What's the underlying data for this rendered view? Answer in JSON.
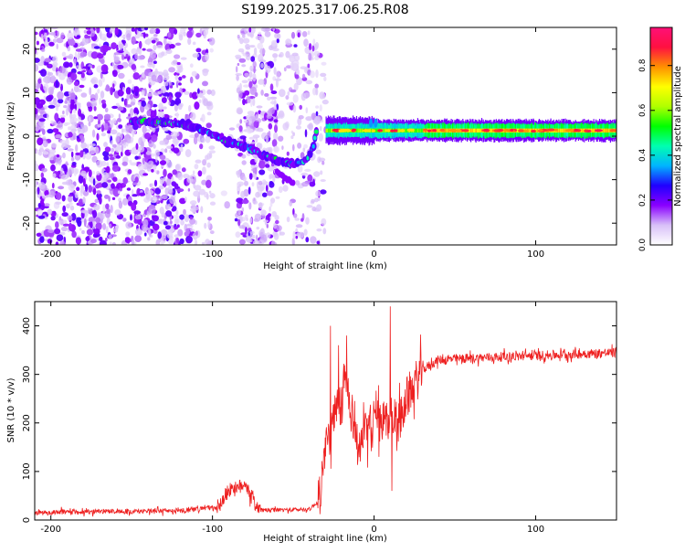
{
  "page_title": "S199.2025.317.06.25.R08",
  "chart_data": [
    {
      "type": "heatmap",
      "title": "S199.2025.317.06.25.R08",
      "xlabel": "Height of straight line (km)",
      "ylabel": "Frequency (Hz)",
      "xlim": [
        -210,
        150
      ],
      "ylim": [
        -25,
        25
      ],
      "x_ticks": [
        -200,
        -100,
        0,
        100
      ],
      "y_ticks": [
        -20,
        -10,
        0,
        10,
        20
      ],
      "colorbar": {
        "label": "Normalized spectral amplitude",
        "range": [
          0.0,
          0.97
        ],
        "ticks": [
          0.0,
          0.2,
          0.4,
          0.6,
          0.8
        ],
        "tick_labels": [
          "0.0",
          "0.2",
          "0.4",
          "0.6",
          "0.8"
        ],
        "colors": [
          "#ffffff",
          "#d8c0f8",
          "#8a00ff",
          "#2000ff",
          "#00b4ff",
          "#00ffb0",
          "#00ff00",
          "#b0ff00",
          "#ffff00",
          "#ff9000",
          "#ff1040",
          "#ff1078"
        ]
      },
      "features": {
        "noise_region_x": [
          -210,
          -30
        ],
        "gap_x": [
          -100,
          -85
        ],
        "curve_points": [
          [
            -150,
            3.5
          ],
          [
            -135,
            3.2
          ],
          [
            -120,
            3.0
          ],
          [
            -110,
            2.0
          ],
          [
            -100,
            0.5
          ],
          [
            -90,
            -1.5
          ],
          [
            -80,
            -2.5
          ],
          [
            -70,
            -4.0
          ],
          [
            -60,
            -5.5
          ],
          [
            -50,
            -6.5
          ],
          [
            -42,
            -5.5
          ],
          [
            -38,
            -3.0
          ],
          [
            -35,
            2.8
          ]
        ],
        "lower_branch_points": [
          [
            -60,
            -8
          ],
          [
            -50,
            -11
          ]
        ],
        "band_center_hz": 1.3,
        "band_x": [
          -30,
          150
        ]
      }
    },
    {
      "type": "line",
      "xlabel": "Height of straight line (km)",
      "ylabel": "SNR (10 * v/v)",
      "xlim": [
        -210,
        150
      ],
      "ylim": [
        0,
        450
      ],
      "x_ticks": [
        -200,
        -100,
        0,
        100
      ],
      "y_ticks": [
        0,
        100,
        200,
        300,
        400
      ],
      "series": [
        {
          "name": "SNR",
          "color": "#ee2020",
          "envelope": [
            [
              -210,
              15
            ],
            [
              -120,
              20
            ],
            [
              -97,
              25
            ],
            [
              -92,
              50
            ],
            [
              -88,
              70
            ],
            [
              -85,
              60
            ],
            [
              -80,
              80
            ],
            [
              -75,
              40
            ],
            [
              -70,
              20
            ],
            [
              -40,
              22
            ],
            [
              -34,
              40
            ],
            [
              -30,
              150
            ],
            [
              -25,
              200
            ],
            [
              -20,
              240
            ],
            [
              -18,
              300
            ],
            [
              -15,
              250
            ],
            [
              -10,
              150
            ],
            [
              -5,
              180
            ],
            [
              0,
              210
            ],
            [
              5,
              200
            ],
            [
              10,
              220
            ],
            [
              15,
              200
            ],
            [
              20,
              250
            ],
            [
              25,
              280
            ],
            [
              30,
              310
            ],
            [
              40,
              330
            ],
            [
              70,
              335
            ],
            [
              110,
              340
            ],
            [
              150,
              345
            ]
          ],
          "spikes": [
            [
              -27,
              400
            ],
            [
              -22,
              360
            ],
            [
              -17,
              380
            ],
            [
              10,
              440
            ],
            [
              11,
              60
            ]
          ]
        }
      ]
    }
  ]
}
